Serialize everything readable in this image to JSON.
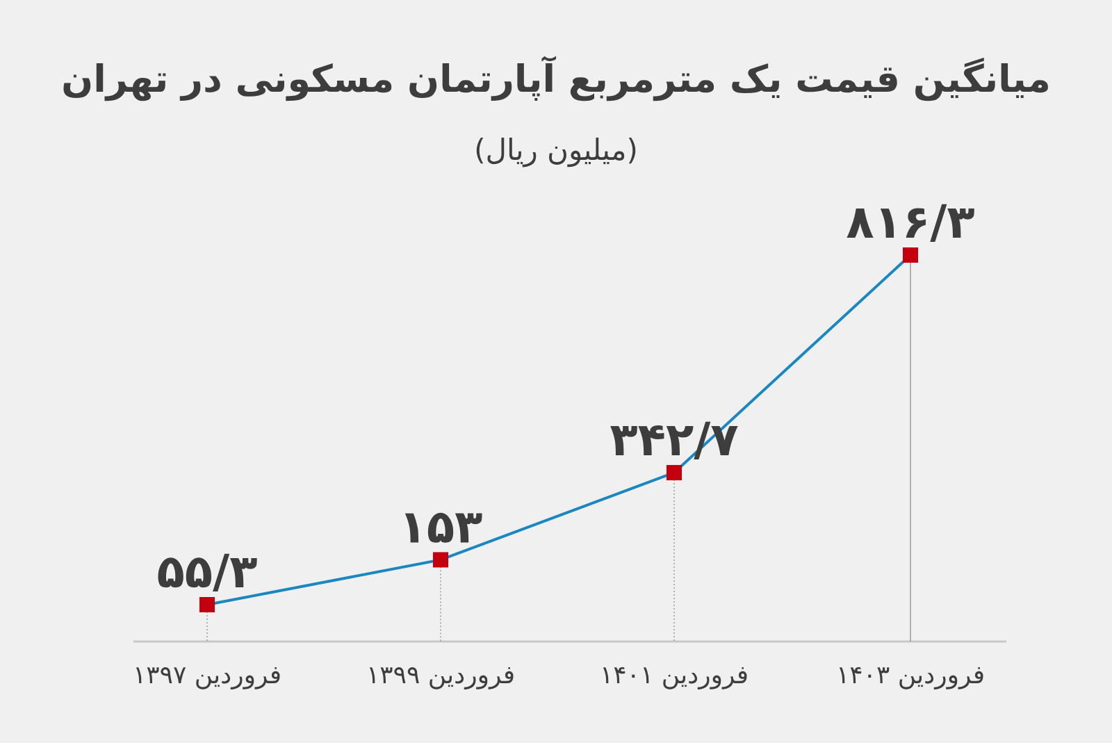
{
  "chart_data": {
    "type": "line",
    "title": "میانگین قیمت یک مترمربع آپارتمان مسکونی در تهران",
    "subtitle": "(میلیون ریال)",
    "categories": [
      "فروردین ۱۳۹۷",
      "فروردین ۱۳۹۹",
      "فروردین ۱۴۰۱",
      "فروردین ۱۴۰۳"
    ],
    "values": [
      55.3,
      153,
      342.7,
      816.3
    ],
    "value_labels": [
      "۵۵/۳",
      "۱۵۳",
      "۳۴۲/۷",
      "۸۱۶/۳"
    ],
    "ylim": [
      0,
      880
    ],
    "grid": false,
    "legend": "none",
    "colors": {
      "line": "#1a87c0",
      "marker": "#c4000f",
      "axis": "#c8c8c8",
      "guide": "#9a9a9a",
      "text": "#3d3d3d",
      "background": "#f0f0f0"
    }
  }
}
